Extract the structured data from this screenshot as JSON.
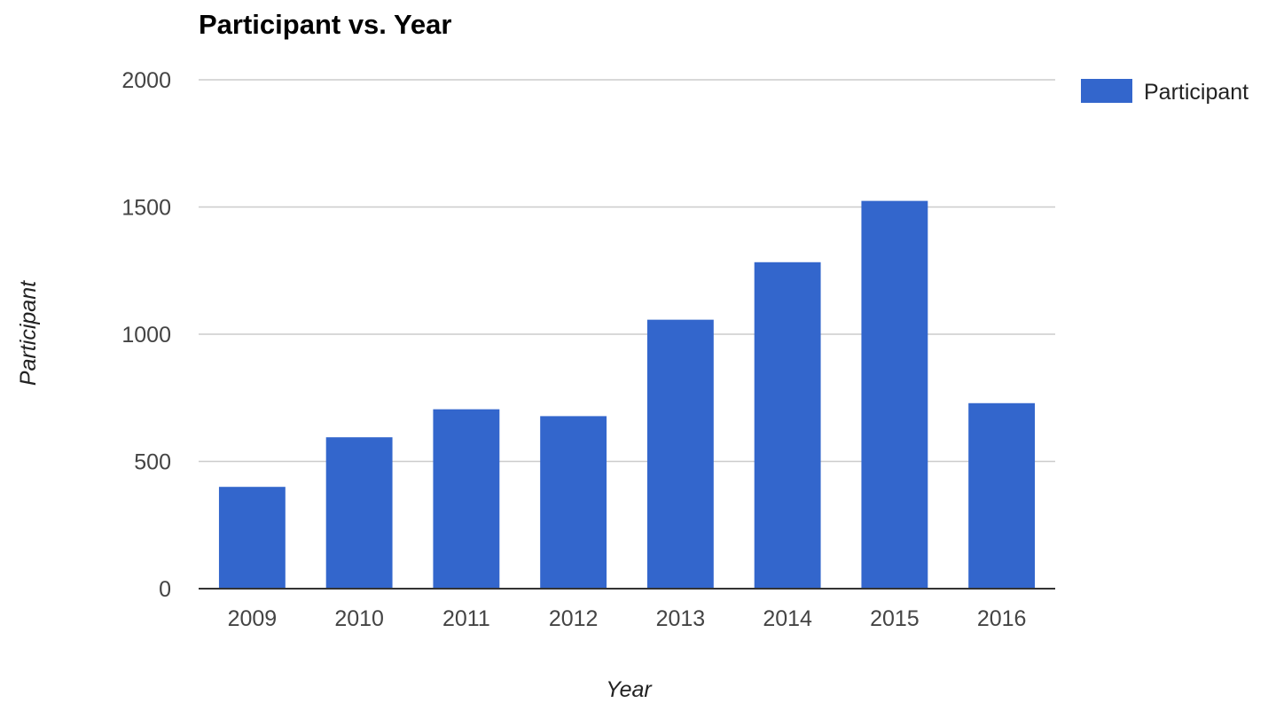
{
  "chart_data": {
    "type": "bar",
    "title": "Participant vs. Year",
    "xlabel": "Year",
    "ylabel": "Participant",
    "categories": [
      "2009",
      "2010",
      "2011",
      "2012",
      "2013",
      "2014",
      "2015",
      "2016"
    ],
    "series": [
      {
        "name": "Participant",
        "color": "#3366cc",
        "values": [
          400,
          595,
          705,
          678,
          1057,
          1283,
          1524,
          729
        ]
      }
    ],
    "ylim": [
      0,
      2000
    ],
    "yticks": [
      "0",
      "500",
      "1000",
      "1500",
      "2000"
    ],
    "grid": true,
    "legend_position": "right"
  }
}
